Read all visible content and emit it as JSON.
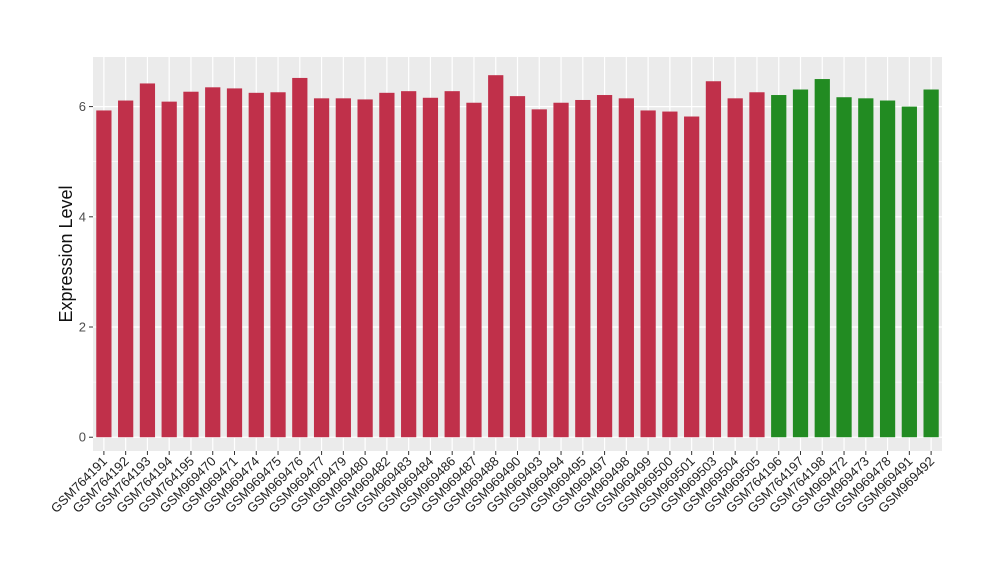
{
  "chart_data": {
    "type": "bar",
    "title": "",
    "xlabel": "",
    "ylabel": "Expression Level",
    "ylim": [
      -0.25,
      6.9
    ],
    "yticks": [
      0,
      2,
      4,
      6
    ],
    "grid": true,
    "legend": "none",
    "categories": [
      "GSM764191",
      "GSM764192",
      "GSM764193",
      "GSM764194",
      "GSM764195",
      "GSM969470",
      "GSM969471",
      "GSM969474",
      "GSM969475",
      "GSM969476",
      "GSM969477",
      "GSM969479",
      "GSM969480",
      "GSM969482",
      "GSM969483",
      "GSM969484",
      "GSM969486",
      "GSM969487",
      "GSM969488",
      "GSM969490",
      "GSM969493",
      "GSM969494",
      "GSM969495",
      "GSM969497",
      "GSM969498",
      "GSM969499",
      "GSM969500",
      "GSM969501",
      "GSM969503",
      "GSM969504",
      "GSM969505",
      "GSM764196",
      "GSM764197",
      "GSM764198",
      "GSM969472",
      "GSM969473",
      "GSM969478",
      "GSM969491",
      "GSM969492"
    ],
    "values": [
      5.93,
      6.11,
      6.42,
      6.09,
      6.27,
      6.35,
      6.33,
      6.25,
      6.26,
      6.52,
      6.15,
      6.15,
      6.13,
      6.25,
      6.28,
      6.16,
      6.28,
      6.07,
      6.57,
      6.19,
      5.95,
      6.07,
      6.12,
      6.21,
      6.15,
      5.93,
      5.91,
      5.82,
      6.46,
      6.15,
      6.26,
      6.21,
      6.31,
      6.5,
      6.17,
      6.15,
      6.11,
      6.0,
      6.31
    ],
    "groups": [
      "a",
      "a",
      "a",
      "a",
      "a",
      "a",
      "a",
      "a",
      "a",
      "a",
      "a",
      "a",
      "a",
      "a",
      "a",
      "a",
      "a",
      "a",
      "a",
      "a",
      "a",
      "a",
      "a",
      "a",
      "a",
      "a",
      "a",
      "a",
      "a",
      "a",
      "a",
      "b",
      "b",
      "b",
      "b",
      "b",
      "b",
      "b",
      "b"
    ],
    "colors": {
      "a": "#c0304a",
      "b": "#228b22"
    },
    "panel_background": "#ebebeb",
    "grid_color": "#ffffff"
  }
}
